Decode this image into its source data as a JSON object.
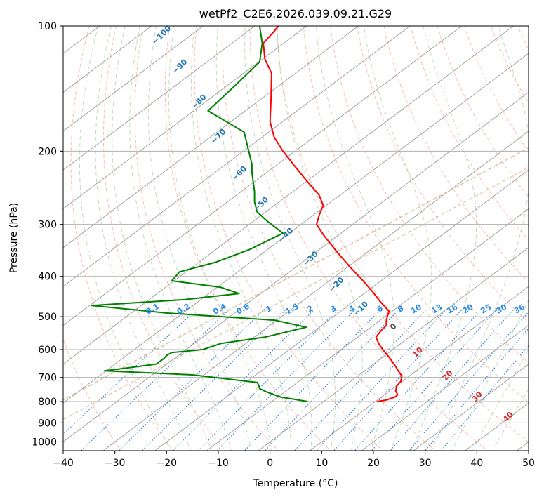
{
  "chart_data": {
    "type": "line",
    "title": "wetPf2_C2E6.2026.039.09.21.G29",
    "xlabel": "Temperature (°C)",
    "ylabel": "Pressure (hPa)",
    "xlim": [
      -40,
      50
    ],
    "ylim": [
      1050,
      100
    ],
    "y_scale": "log",
    "x_ticks": [
      "−40",
      "−30",
      "−20",
      "−10",
      "0",
      "10",
      "20",
      "30",
      "40",
      "50"
    ],
    "x_tick_values": [
      -40,
      -30,
      -20,
      -10,
      0,
      10,
      20,
      30,
      40,
      50
    ],
    "y_ticks": [
      "100",
      "200",
      "300",
      "400",
      "500",
      "600",
      "700",
      "800",
      "900",
      "1000"
    ],
    "y_tick_values": [
      100,
      200,
      300,
      400,
      500,
      600,
      700,
      800,
      900,
      1000
    ],
    "grid": true,
    "series": [
      {
        "color": "#ff0000",
        "points": [
          [
            20.7,
            800
          ],
          [
            22.5,
            793
          ],
          [
            24.2,
            780
          ],
          [
            24.7,
            770
          ],
          [
            24.3,
            755
          ],
          [
            24.5,
            735
          ],
          [
            25.3,
            715
          ],
          [
            25.5,
            695
          ],
          [
            24.8,
            675
          ],
          [
            24.0,
            650
          ],
          [
            23.0,
            625
          ],
          [
            21.8,
            600
          ],
          [
            21.0,
            580
          ],
          [
            20.5,
            560
          ],
          [
            21.5,
            540
          ],
          [
            22.5,
            525
          ],
          [
            22.5,
            510
          ],
          [
            23.0,
            485
          ],
          [
            21.3,
            460
          ],
          [
            19.8,
            435
          ],
          [
            18.0,
            410
          ],
          [
            15.5,
            380
          ],
          [
            13.0,
            350
          ],
          [
            10.5,
            320
          ],
          [
            9.0,
            300
          ],
          [
            9.5,
            285
          ],
          [
            10.3,
            270
          ],
          [
            9.5,
            255
          ],
          [
            7.0,
            235
          ],
          [
            4.5,
            215
          ],
          [
            2.5,
            200
          ],
          [
            0.8,
            185
          ],
          [
            0.0,
            170
          ],
          [
            0.2,
            150
          ],
          [
            0.3,
            130
          ],
          [
            -1.0,
            120
          ],
          [
            -1.3,
            110
          ],
          [
            0.8,
            103
          ],
          [
            1.6,
            100
          ]
        ]
      },
      {
        "color": "#008000",
        "points": [
          [
            7.3,
            800
          ],
          [
            2.0,
            780
          ],
          [
            -0.5,
            760
          ],
          [
            -2.0,
            745
          ],
          [
            -2.2,
            730
          ],
          [
            -2.5,
            720
          ],
          [
            -15.0,
            690
          ],
          [
            -32.0,
            675
          ],
          [
            -28.0,
            665
          ],
          [
            -22.0,
            650
          ],
          [
            -20.5,
            630
          ],
          [
            -20.0,
            620
          ],
          [
            -19.0,
            610
          ],
          [
            -13.0,
            600
          ],
          [
            -9.5,
            580
          ],
          [
            -1.0,
            560
          ],
          [
            7.0,
            530
          ],
          [
            1.0,
            510
          ],
          [
            -20.0,
            490
          ],
          [
            -34.5,
            470
          ],
          [
            -16.5,
            455
          ],
          [
            -6.0,
            440
          ],
          [
            -9.5,
            425
          ],
          [
            -19.0,
            410
          ],
          [
            -17.5,
            390
          ],
          [
            -10.5,
            370
          ],
          [
            -4.0,
            345
          ],
          [
            2.5,
            315
          ],
          [
            -0.5,
            295
          ],
          [
            -2.5,
            280
          ],
          [
            -3.0,
            265
          ],
          [
            -3.0,
            250
          ],
          [
            -3.5,
            225
          ],
          [
            -3.5,
            215
          ],
          [
            -5.0,
            180
          ],
          [
            -12.0,
            160
          ],
          [
            -7.0,
            140
          ],
          [
            -2.0,
            122
          ],
          [
            -1.5,
            110
          ],
          [
            -2.0,
            100
          ]
        ]
      }
    ],
    "isotherm_labels": [
      "−100",
      "−90",
      "−80",
      "−70",
      "−60",
      "−50",
      "−40",
      "−30",
      "−20",
      "−10",
      "0",
      "10",
      "20",
      "30",
      "40"
    ],
    "isotherm_label_positions": [
      {
        "t": -100,
        "x": -21.0,
        "p": 105
      },
      {
        "t": -90,
        "x": -17.5,
        "p": 125
      },
      {
        "t": -80,
        "x": -13.8,
        "p": 152
      },
      {
        "t": -70,
        "x": -10.0,
        "p": 184
      },
      {
        "t": -60,
        "x": -6.0,
        "p": 226
      },
      {
        "t": -50,
        "x": -1.8,
        "p": 268
      },
      {
        "t": -40,
        "x": 3.0,
        "p": 318
      },
      {
        "t": -30,
        "x": 7.8,
        "p": 362
      },
      {
        "t": -20,
        "x": 12.8,
        "p": 418
      },
      {
        "t": -10,
        "x": 17.5,
        "p": 478
      },
      {
        "t": 0,
        "x": 23.8,
        "p": 528
      },
      {
        "t": 10,
        "x": 28.5,
        "p": 608
      },
      {
        "t": 20,
        "x": 34.3,
        "p": 692
      },
      {
        "t": 30,
        "x": 40.0,
        "p": 778
      },
      {
        "t": 40,
        "x": 46.0,
        "p": 870
      }
    ],
    "mixing_ratio_labels": [
      "0.1",
      "0.2",
      "0.4",
      "0.6",
      "1",
      "1.5",
      "2",
      "3",
      "4",
      "6",
      "8",
      "10",
      "13",
      "16",
      "20",
      "25",
      "30",
      "36"
    ],
    "mixing_ratio_label_x": [
      -22.5,
      -16.5,
      -9.5,
      -5.0,
      0.0,
      4.5,
      8.0,
      12.5,
      16.0,
      21.5,
      25.5,
      28.5,
      32.5,
      35.5,
      38.5,
      42.0,
      45.0,
      48.5
    ],
    "mixing_ratio_label_p": 485
  }
}
